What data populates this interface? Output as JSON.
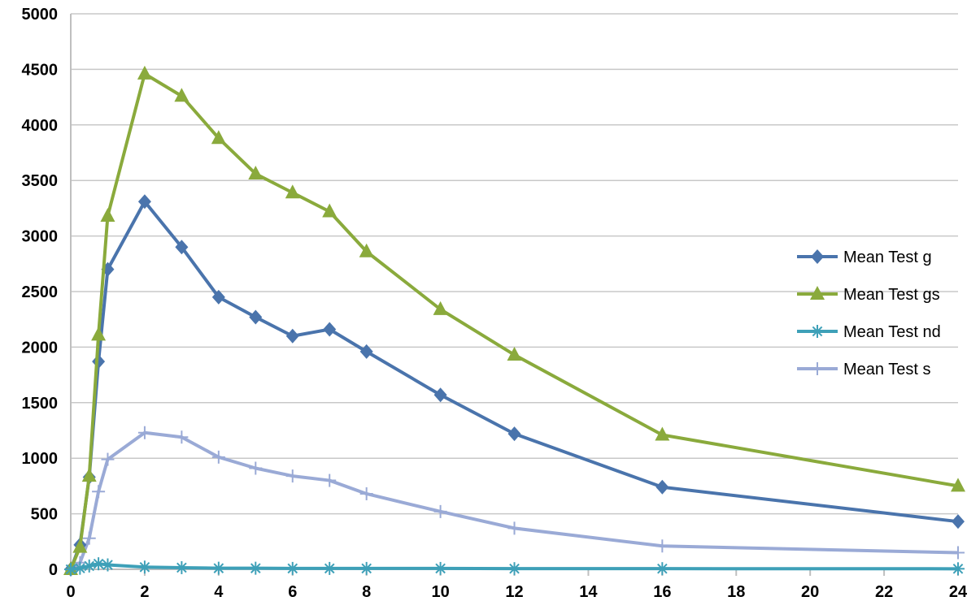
{
  "chart_data": {
    "type": "line",
    "title": "",
    "xlabel": "",
    "ylabel": "",
    "xlim": [
      0,
      24
    ],
    "ylim": [
      0,
      5000
    ],
    "x_ticks": [
      0,
      2,
      4,
      6,
      8,
      10,
      12,
      14,
      16,
      18,
      20,
      22,
      24
    ],
    "y_ticks": [
      0,
      500,
      1000,
      1500,
      2000,
      2500,
      3000,
      3500,
      4000,
      4500,
      5000
    ],
    "grid": "horizontal",
    "legend_position": "right",
    "x": [
      0,
      0.25,
      0.5,
      0.75,
      1,
      2,
      3,
      4,
      5,
      6,
      7,
      8,
      10,
      12,
      16,
      24
    ],
    "series": [
      {
        "name": "Mean Test g",
        "color": "#4a74ac",
        "marker": "diamond",
        "values": [
          0,
          220,
          830,
          1870,
          2700,
          3310,
          2900,
          2450,
          2270,
          2100,
          2160,
          1960,
          1570,
          1220,
          740,
          430
        ]
      },
      {
        "name": "Mean Test gs",
        "color": "#8aaa3c",
        "marker": "triangle",
        "values": [
          0,
          200,
          840,
          2110,
          3180,
          4460,
          4260,
          3880,
          3560,
          3390,
          3220,
          2860,
          2340,
          1930,
          1210,
          750
        ]
      },
      {
        "name": "Mean Test nd",
        "color": "#3ea0b8",
        "marker": "asterisk",
        "values": [
          0,
          10,
          30,
          50,
          40,
          20,
          15,
          10,
          10,
          8,
          8,
          8,
          8,
          6,
          6,
          5
        ]
      },
      {
        "name": "Mean Test s",
        "color": "#9aaad6",
        "marker": "plus",
        "values": [
          0,
          60,
          280,
          700,
          990,
          1230,
          1190,
          1010,
          910,
          840,
          800,
          680,
          520,
          370,
          210,
          150
        ]
      }
    ]
  }
}
